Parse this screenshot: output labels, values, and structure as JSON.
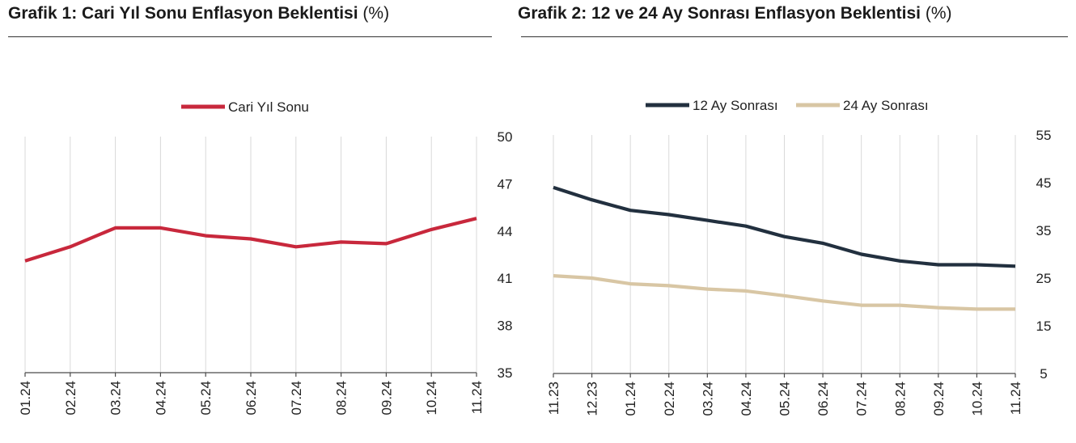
{
  "chart_data": [
    {
      "type": "line",
      "title_bold": "Grafik 1: Cari Yıl Sonu Enflasyon Beklentisi",
      "title_unit": "(%)",
      "categories": [
        "01.24",
        "02.24",
        "03.24",
        "04.24",
        "05.24",
        "06.24",
        "07.24",
        "08.24",
        "09.24",
        "10.24",
        "11.24"
      ],
      "series": [
        {
          "name": "Cari Yıl Sonu",
          "color": "#c8283c",
          "values": [
            42.1,
            43.0,
            44.2,
            44.2,
            43.7,
            43.5,
            43.0,
            43.3,
            43.2,
            44.1,
            44.8
          ]
        }
      ],
      "y_axis": {
        "side": "right",
        "min": 35,
        "max": 50,
        "ticks": [
          35,
          38,
          41,
          44,
          47,
          50
        ]
      },
      "grid": "vertical",
      "legend": "top-center"
    },
    {
      "type": "line",
      "title_bold": "Grafik 2: 12 ve 24 Ay Sonrası Enflasyon Beklentisi",
      "title_unit": "(%)",
      "categories": [
        "11.23",
        "12.23",
        "01.24",
        "02.24",
        "03.24",
        "04.24",
        "05.24",
        "06.24",
        "07.24",
        "08.24",
        "09.24",
        "10.24",
        "11.24"
      ],
      "series": [
        {
          "name": "12 Ay Sonrası",
          "color": "#22303f",
          "values": [
            44.0,
            41.4,
            39.2,
            38.3,
            37.1,
            35.9,
            33.7,
            32.3,
            30.0,
            28.6,
            27.8,
            27.8,
            27.5
          ]
        },
        {
          "name": "24 Ay Sonrası",
          "color": "#d8c6a4",
          "values": [
            25.5,
            25.0,
            23.8,
            23.4,
            22.7,
            22.3,
            21.3,
            20.2,
            19.3,
            19.3,
            18.8,
            18.5,
            18.5
          ]
        }
      ],
      "y_axis": {
        "side": "right",
        "min": 5,
        "max": 55,
        "ticks": [
          5,
          15,
          25,
          35,
          45,
          55
        ]
      },
      "grid": "vertical",
      "legend": "top-center"
    }
  ]
}
